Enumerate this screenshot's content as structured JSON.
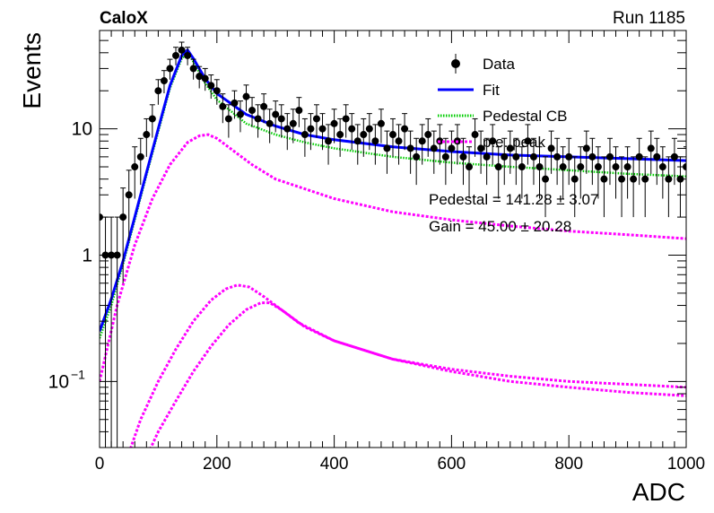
{
  "header": {
    "left_label": "CaloX",
    "right_label": "Run 1185"
  },
  "colors": {
    "data": "#000000",
    "fit": "#0000ff",
    "pedestal": "#00cc00",
    "pe": "#ff00ff",
    "frame": "#000000",
    "background": "#ffffff"
  },
  "chart_data": {
    "type": "scatter",
    "title": "",
    "xlabel": "ADC",
    "ylabel": "Events",
    "xlim": [
      0,
      1000
    ],
    "ylim": [
      0.03,
      60
    ],
    "yscale": "log",
    "grid": false,
    "legend_position": "top-right",
    "x_ticks": [
      {
        "value": 0,
        "label": "0"
      },
      {
        "value": 200,
        "label": "200"
      },
      {
        "value": 400,
        "label": "400"
      },
      {
        "value": 600,
        "label": "600"
      },
      {
        "value": 800,
        "label": "800"
      },
      {
        "value": 1000,
        "label": "1000"
      }
    ],
    "y_ticks": [
      {
        "value": 0.1,
        "label": "10",
        "sup": "−1"
      },
      {
        "value": 1,
        "label": "1",
        "sup": ""
      },
      {
        "value": 10,
        "label": "10",
        "sup": ""
      }
    ],
    "legend": [
      {
        "label": "Data",
        "style": "marker",
        "color": "#000000"
      },
      {
        "label": "Fit",
        "style": "solid",
        "color": "#0000ff"
      },
      {
        "label": "Pedestal CB",
        "style": "dotted",
        "color": "#00cc00"
      },
      {
        "label": "p.e. peak",
        "style": "dashed",
        "color": "#ff00ff"
      }
    ],
    "annotations": [
      "Pedestal = 141.28 ± 3.07",
      "Gain = 45.00 ± 20.28"
    ],
    "data_points": {
      "x": [
        0,
        10,
        20,
        30,
        40,
        50,
        60,
        70,
        80,
        90,
        100,
        110,
        120,
        130,
        140,
        150,
        160,
        170,
        180,
        190,
        200,
        210,
        220,
        230,
        240,
        250,
        260,
        270,
        280,
        290,
        300,
        310,
        320,
        330,
        340,
        350,
        360,
        370,
        380,
        390,
        400,
        410,
        420,
        430,
        440,
        450,
        460,
        470,
        480,
        490,
        500,
        510,
        520,
        530,
        540,
        550,
        560,
        570,
        580,
        590,
        600,
        610,
        620,
        630,
        640,
        650,
        660,
        670,
        680,
        690,
        700,
        710,
        720,
        730,
        740,
        750,
        760,
        770,
        780,
        790,
        800,
        810,
        820,
        830,
        840,
        850,
        860,
        870,
        880,
        890,
        900,
        910,
        920,
        930,
        940,
        950,
        960,
        970,
        980,
        990,
        1000
      ],
      "y": [
        2,
        1,
        1,
        1,
        2,
        3,
        5,
        6,
        9,
        12,
        20,
        24,
        30,
        38,
        42,
        38,
        30,
        26,
        25,
        22,
        20,
        15,
        12,
        16,
        13,
        18,
        14,
        12,
        15,
        11,
        13,
        12,
        10,
        11,
        14,
        9,
        10,
        12,
        10,
        8,
        11,
        9,
        12,
        10,
        8,
        9,
        10,
        8,
        11,
        7,
        9,
        8,
        10,
        7,
        6,
        8,
        9,
        7,
        8,
        6,
        7,
        8,
        6,
        5,
        9,
        7,
        6,
        8,
        5,
        6,
        7,
        6,
        5,
        8,
        6,
        5,
        4,
        7,
        6,
        5,
        6,
        4,
        5,
        7,
        6,
        5,
        4,
        6,
        5,
        4,
        5,
        4,
        6,
        4,
        7,
        6,
        5,
        4,
        6,
        4,
        5
      ],
      "yerr": [
        1.4,
        1,
        1,
        1,
        1.4,
        1.7,
        2.2,
        2.4,
        3,
        3.5,
        4.5,
        4.9,
        5.5,
        6.2,
        6.5,
        6.2,
        5.5,
        5.1,
        5,
        4.7,
        4.5,
        3.9,
        3.5,
        4,
        3.6,
        4.2,
        3.7,
        3.5,
        3.9,
        3.3,
        3.6,
        3.5,
        3.2,
        3.3,
        3.7,
        3,
        3.2,
        3.5,
        3.2,
        2.8,
        3.3,
        3,
        3.5,
        3.2,
        2.8,
        3,
        3.2,
        2.8,
        3.3,
        2.6,
        3,
        2.8,
        3.2,
        2.6,
        2.4,
        2.8,
        3,
        2.6,
        2.8,
        2.4,
        2.6,
        2.8,
        2.4,
        2.2,
        3,
        2.6,
        2.4,
        2.8,
        2.2,
        2.4,
        2.6,
        2.4,
        2.2,
        2.8,
        2.4,
        2.2,
        2,
        2.6,
        2.4,
        2.2,
        2.4,
        2,
        2.2,
        2.6,
        2.4,
        2.2,
        2,
        2.4,
        2.2,
        2,
        2.2,
        2,
        2.4,
        2,
        2.6,
        2.4,
        2.2,
        2,
        2.4,
        2,
        2.2
      ]
    },
    "fit_curve": {
      "x": [
        0,
        20,
        40,
        60,
        80,
        100,
        120,
        140,
        150,
        160,
        180,
        200,
        250,
        300,
        350,
        400,
        500,
        600,
        700,
        800,
        900,
        1000
      ],
      "y": [
        0.25,
        0.45,
        0.9,
        2,
        4.5,
        10,
        22,
        38,
        42,
        36,
        25,
        19,
        13,
        10.5,
        9,
        8.2,
        7.2,
        6.6,
        6.2,
        6,
        5.8,
        5.6
      ]
    },
    "pedestal_cb": {
      "x": [
        0,
        20,
        40,
        60,
        80,
        100,
        120,
        140,
        150,
        160,
        180,
        200,
        250,
        300,
        350,
        400,
        500,
        600,
        700,
        800,
        900,
        1000
      ],
      "y": [
        0.22,
        0.4,
        0.85,
        1.9,
        4.3,
        9.5,
        21,
        36,
        40,
        34,
        23,
        17,
        11,
        9,
        7.8,
        7,
        6,
        5.4,
        5,
        4.7,
        4.4,
        4.2
      ]
    },
    "pe_peaks": [
      {
        "x": [
          0,
          30,
          60,
          90,
          120,
          150,
          170,
          185,
          200,
          230,
          260,
          300,
          400,
          500,
          600,
          700,
          800,
          900,
          1000
        ],
        "y": [
          0.1,
          0.4,
          1.2,
          2.8,
          5.2,
          7.8,
          8.8,
          9,
          8.4,
          6.6,
          5.2,
          4,
          2.8,
          2.2,
          1.9,
          1.7,
          1.55,
          1.45,
          1.35
        ]
      },
      {
        "x": [
          40,
          70,
          100,
          130,
          160,
          190,
          215,
          235,
          255,
          280,
          310,
          350,
          400,
          500,
          600,
          700,
          800,
          900,
          1000
        ],
        "y": [
          0.02,
          0.05,
          0.1,
          0.18,
          0.3,
          0.44,
          0.54,
          0.58,
          0.56,
          0.47,
          0.37,
          0.27,
          0.21,
          0.15,
          0.125,
          0.11,
          0.1,
          0.095,
          0.09
        ]
      },
      {
        "x": [
          70,
          100,
          130,
          160,
          190,
          220,
          250,
          275,
          290,
          310,
          340,
          400,
          500,
          600,
          700,
          800,
          900,
          1000
        ],
        "y": [
          0.02,
          0.04,
          0.07,
          0.12,
          0.19,
          0.28,
          0.37,
          0.42,
          0.42,
          0.37,
          0.29,
          0.21,
          0.15,
          0.12,
          0.1,
          0.09,
          0.082,
          0.077
        ]
      }
    ]
  }
}
